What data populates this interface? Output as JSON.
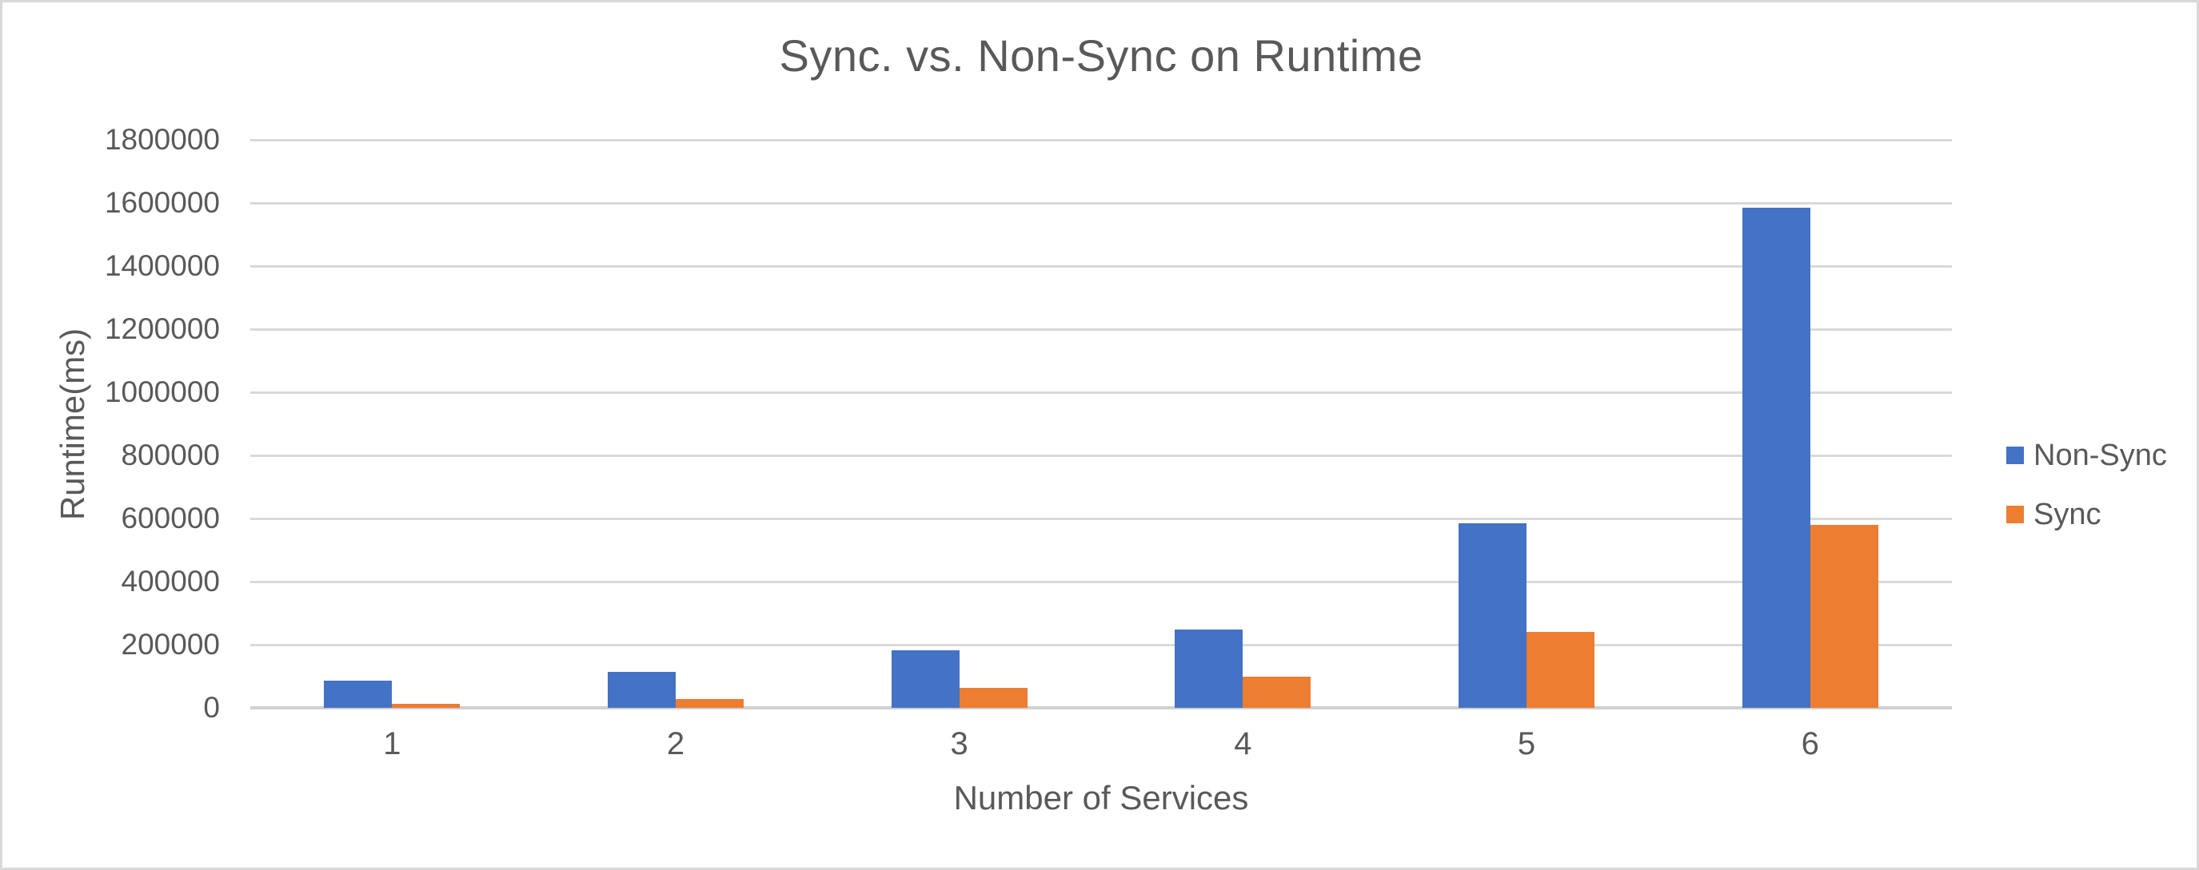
{
  "chart_data": {
    "type": "bar",
    "title": "Sync. vs. Non-Sync on Runtime",
    "xlabel": "Number of Services",
    "ylabel": "Runtime(ms)",
    "categories": [
      "1",
      "2",
      "3",
      "4",
      "5",
      "6"
    ],
    "series": [
      {
        "name": "Non-Sync",
        "color": "#4472C4",
        "values": [
          85000,
          115000,
          183000,
          248000,
          585000,
          1585000
        ]
      },
      {
        "name": "Sync",
        "color": "#ED7D31",
        "values": [
          13000,
          28000,
          63000,
          99000,
          240000,
          580000
        ]
      }
    ],
    "ylim": [
      0,
      1800000
    ],
    "yticks": [
      0,
      200000,
      400000,
      600000,
      800000,
      1000000,
      1200000,
      1400000,
      1600000,
      1800000
    ],
    "grid": true,
    "legend_position": "right"
  },
  "colors": {
    "non_sync": "#4472C4",
    "sync": "#ED7D31",
    "gridline": "#D9D9D9",
    "axis_line": "#D0D0D0",
    "text": "#595959",
    "frame_border": "#D9D9D9",
    "background": "#FFFFFF"
  }
}
